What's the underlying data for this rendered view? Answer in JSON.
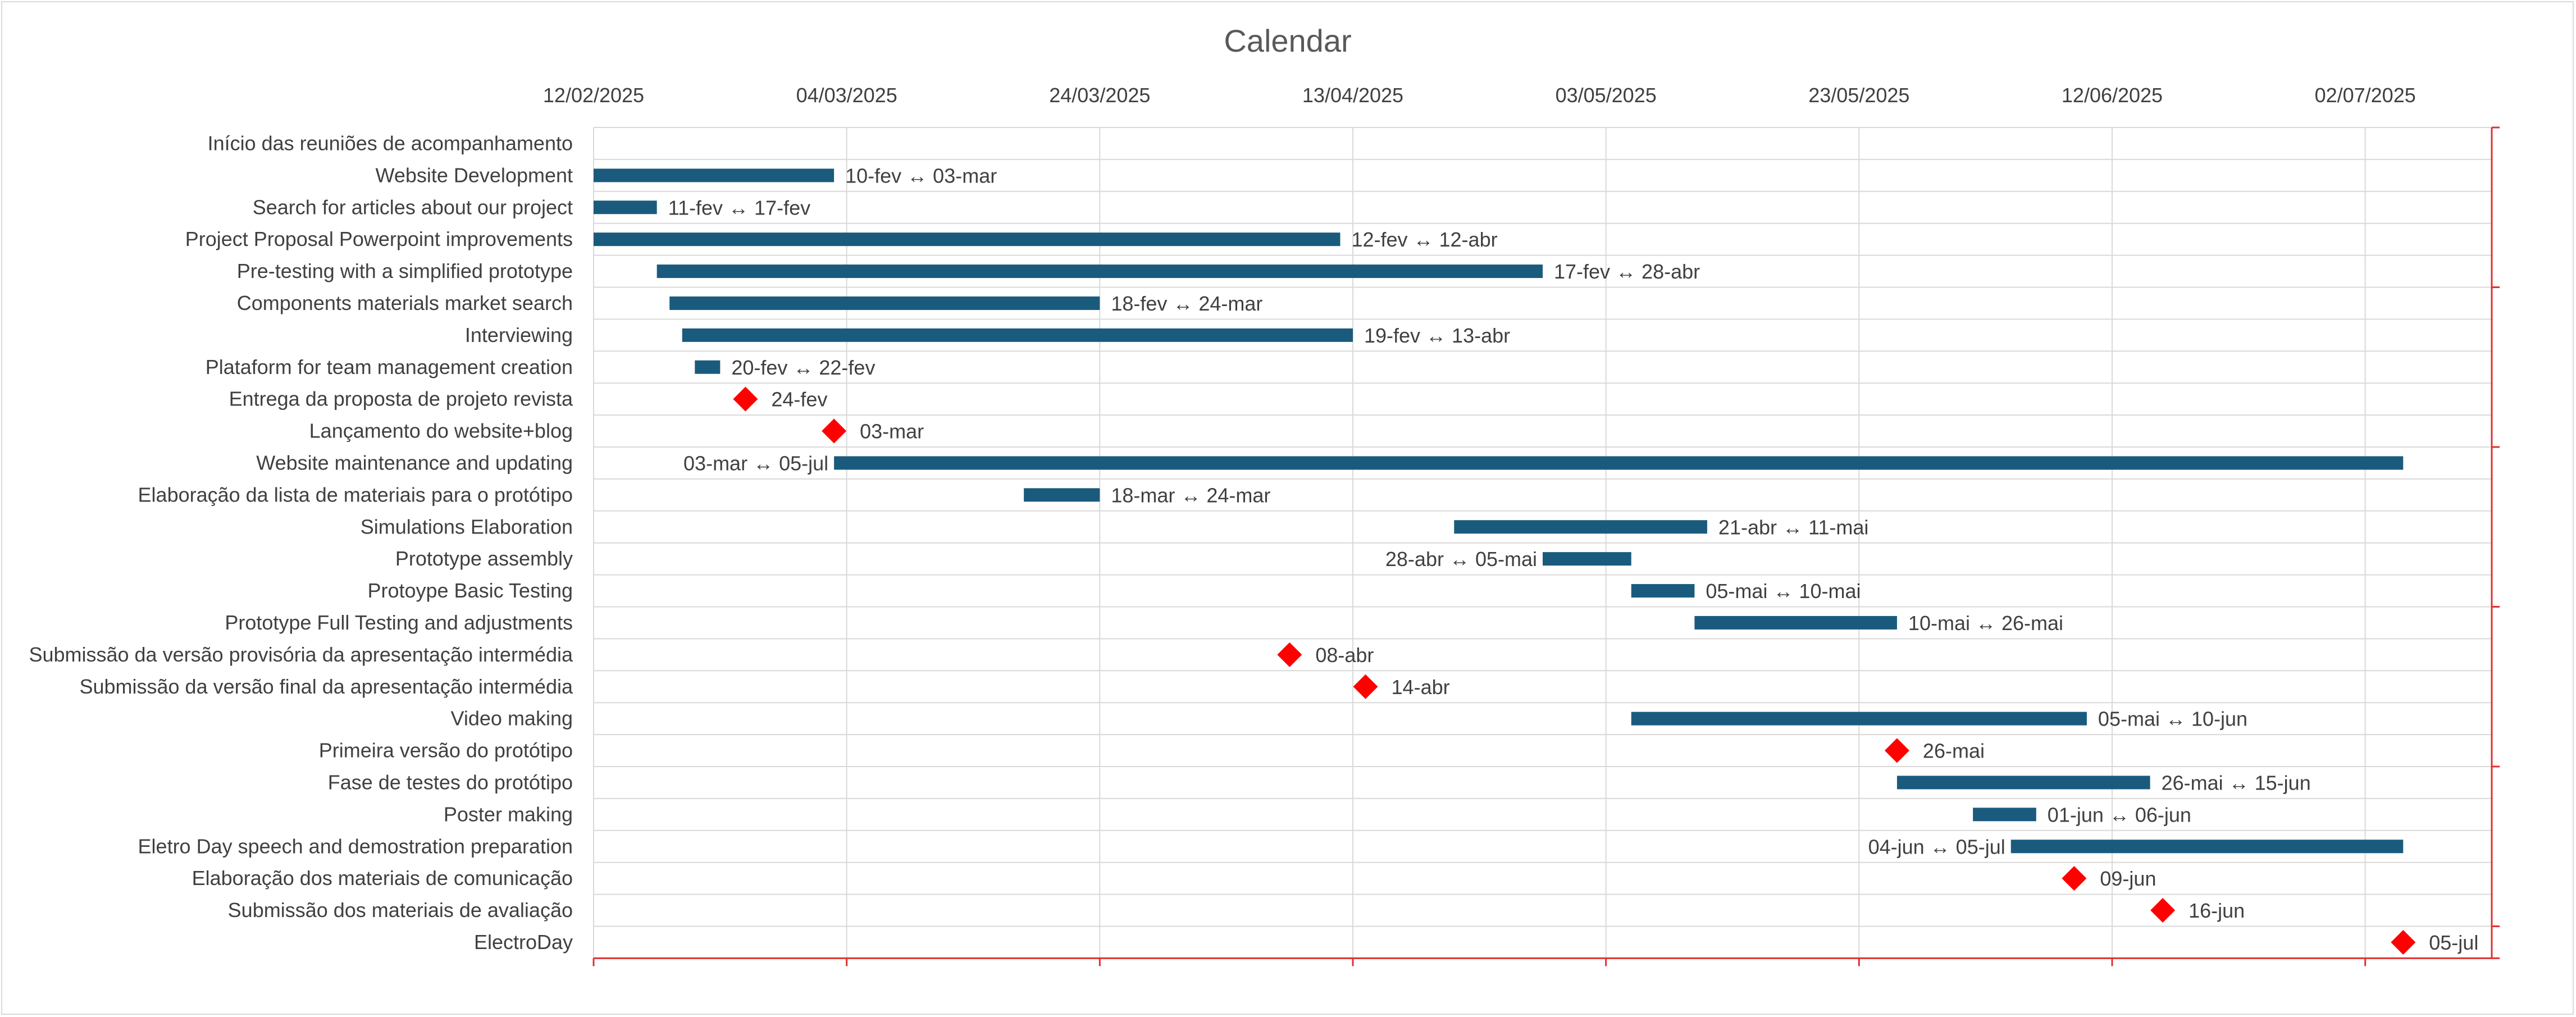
{
  "chart_data": {
    "type": "gantt",
    "title": "Calendar",
    "x_axis": {
      "position": "top",
      "min": "2025-02-12",
      "max": "2025-07-12",
      "tick_labels": [
        "12/02/2025",
        "04/03/2025",
        "24/03/2025",
        "13/04/2025",
        "03/05/2025",
        "23/05/2025",
        "12/06/2025",
        "02/07/2025"
      ],
      "tick_dates": [
        "2025-02-12",
        "2025-03-04",
        "2025-03-24",
        "2025-04-13",
        "2025-05-03",
        "2025-05-23",
        "2025-06-12",
        "2025-07-02"
      ]
    },
    "grid": true,
    "colors": {
      "bar": "#1a5b7d",
      "milestone": "#ff0000",
      "grid": "#d9d9d9",
      "axis": "#e03030"
    },
    "tasks": [
      {
        "name": "Início das reuniões de acompanhamento",
        "kind": "none"
      },
      {
        "name": "Website Development ",
        "kind": "bar",
        "start": "2025-02-12",
        "end": "2025-03-03",
        "label": "10-fev ↔ 03-mar"
      },
      {
        "name": "Search for articles about our project",
        "kind": "bar",
        "start": "2025-02-12",
        "end": "2025-02-17",
        "label": "11-fev ↔ 17-fev"
      },
      {
        "name": "Project Proposal Powerpoint improvements",
        "kind": "bar",
        "start": "2025-02-12",
        "end": "2025-04-12",
        "label": "12-fev ↔ 12-abr"
      },
      {
        "name": "Pre-testing with a simplified prototype ",
        "kind": "bar",
        "start": "2025-02-17",
        "end": "2025-04-28",
        "label": "17-fev ↔ 28-abr"
      },
      {
        "name": "Components materials market search",
        "kind": "bar",
        "start": "2025-02-18",
        "end": "2025-03-24",
        "label": "18-fev ↔ 24-mar"
      },
      {
        "name": "Interviewing",
        "kind": "bar",
        "start": "2025-02-19",
        "end": "2025-04-13",
        "label": "19-fev ↔ 13-abr"
      },
      {
        "name": "Plataform for team management creation",
        "kind": "bar",
        "start": "2025-02-20",
        "end": "2025-02-22",
        "label": "20-fev ↔ 22-fev"
      },
      {
        "name": "Entrega da proposta de projeto revista",
        "kind": "milestone",
        "date": "2025-02-24",
        "label": "24-fev"
      },
      {
        "name": "Lançamento do website+blog",
        "kind": "milestone",
        "date": "2025-03-03",
        "label": "03-mar"
      },
      {
        "name": "Website maintenance and updating",
        "kind": "bar",
        "start": "2025-03-03",
        "end": "2025-07-05",
        "label": "03-mar ↔ 05-jul",
        "label_side": "left"
      },
      {
        "name": "Elaboração da lista de materiais para o protótipo",
        "kind": "bar",
        "start": "2025-03-18",
        "end": "2025-03-24",
        "label": "18-mar ↔ 24-mar"
      },
      {
        "name": "Simulations Elaboration",
        "kind": "bar",
        "start": "2025-04-21",
        "end": "2025-05-11",
        "label": "21-abr ↔ 11-mai"
      },
      {
        "name": "Prototype assembly ",
        "kind": "bar",
        "start": "2025-04-28",
        "end": "2025-05-05",
        "label": "28-abr ↔ 05-mai",
        "label_side": "left"
      },
      {
        "name": "Protoype Basic Testing",
        "kind": "bar",
        "start": "2025-05-05",
        "end": "2025-05-10",
        "label": "05-mai ↔ 10-mai"
      },
      {
        "name": "Prototype Full Testing and adjustments",
        "kind": "bar",
        "start": "2025-05-10",
        "end": "2025-05-26",
        "label": "10-mai ↔ 26-mai"
      },
      {
        "name": "Submissão da versão provisória da apresentação intermédia",
        "kind": "milestone",
        "date": "2025-04-08",
        "label": "08-abr"
      },
      {
        "name": "Submissão da versão final da apresentação intermédia",
        "kind": "milestone",
        "date": "2025-04-14",
        "label": "14-abr"
      },
      {
        "name": "Video making",
        "kind": "bar",
        "start": "2025-05-05",
        "end": "2025-06-10",
        "label": "05-mai ↔ 10-jun"
      },
      {
        "name": "Primeira versão do protótipo ",
        "kind": "milestone",
        "date": "2025-05-26",
        "label": "26-mai"
      },
      {
        "name": "Fase de testes do protótipo",
        "kind": "bar",
        "start": "2025-05-26",
        "end": "2025-06-15",
        "label": "26-mai ↔ 15-jun"
      },
      {
        "name": "Poster making ",
        "kind": "bar",
        "start": "2025-06-01",
        "end": "2025-06-06",
        "label": "01-jun ↔ 06-jun"
      },
      {
        "name": "Eletro Day speech and demostration preparation",
        "kind": "bar",
        "start": "2025-06-04",
        "end": "2025-07-05",
        "label": "04-jun ↔ 05-jul",
        "label_side": "left"
      },
      {
        "name": "Elaboração dos materiais de comunicação",
        "kind": "milestone",
        "date": "2025-06-09",
        "label": "09-jun"
      },
      {
        "name": "Submissão dos materiais de avaliação ",
        "kind": "milestone",
        "date": "2025-06-16",
        "label": "16-jun"
      },
      {
        "name": "ElectroDay ",
        "kind": "milestone",
        "date": "2025-07-05",
        "label": "05-jul"
      }
    ]
  }
}
